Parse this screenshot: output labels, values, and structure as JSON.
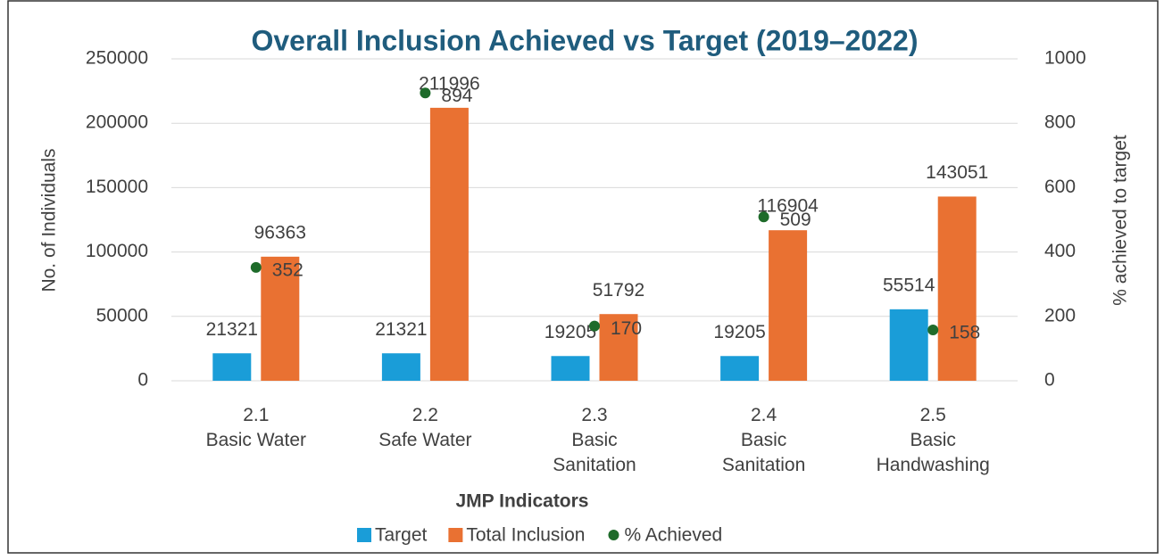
{
  "chart_data": {
    "type": "combo",
    "title": "Overall Inclusion Achieved vs Target (2019–2022)",
    "x_label": "JMP Indicators",
    "y_label": "No. of Individuals",
    "y2_label": "% achieved to target",
    "categories": [
      [
        "2.1",
        "Basic Water"
      ],
      [
        "2.2",
        "Safe Water"
      ],
      [
        "2.3",
        "Basic",
        "Sanitation"
      ],
      [
        "2.4",
        "Basic",
        "Sanitation"
      ],
      [
        "2.5",
        "Basic",
        "Handwashing"
      ]
    ],
    "series": [
      {
        "name": "Target",
        "type": "bar",
        "color": "#1a9dd8",
        "values": [
          21321,
          21321,
          19205,
          19205,
          55514
        ]
      },
      {
        "name": "Total Inclusion",
        "type": "bar",
        "color": "#e97132",
        "values": [
          96363,
          211996,
          51792,
          116904,
          143051
        ]
      },
      {
        "name": "% Achieved",
        "type": "scatter",
        "axis": "y2",
        "color": "#1e6b2a",
        "values": [
          352,
          894,
          170,
          509,
          158
        ]
      }
    ],
    "ylim": [
      0,
      250000
    ],
    "yticks": [
      0,
      50000,
      100000,
      150000,
      200000,
      250000
    ],
    "y2lim": [
      0,
      1000
    ],
    "y2ticks": [
      0,
      200,
      400,
      600,
      800,
      1000
    ],
    "grid": true,
    "legend": "bottom"
  }
}
